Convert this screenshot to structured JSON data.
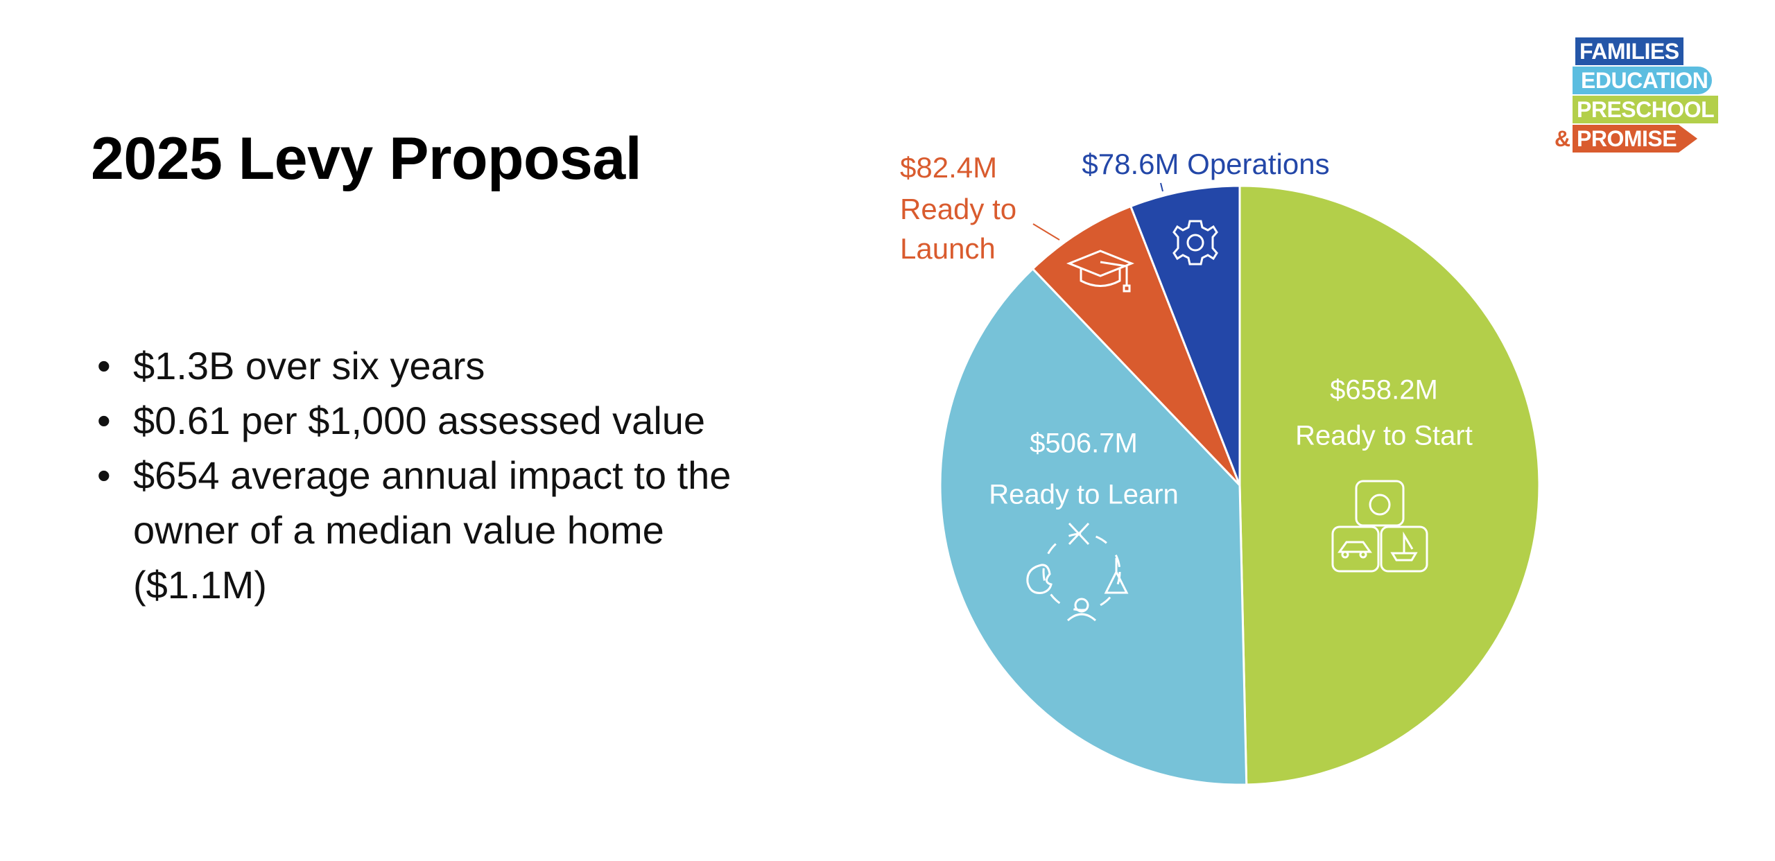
{
  "slide": {
    "title": "2025 Levy Proposal",
    "bullets": [
      "$1.3B over six years",
      "$0.61 per $1,000 assessed value",
      "$654 average annual impact to the owner of a median value home ($1.1M)"
    ]
  },
  "logo": {
    "lines": [
      "FAMILIES",
      "EDUCATION",
      "PRESCHOOL",
      "&",
      "PROMISE"
    ]
  },
  "chart_data": {
    "type": "pie",
    "start": "top, clockwise",
    "unit": "$M",
    "slices": [
      {
        "name": "Ready to Start",
        "value": 658.2,
        "label": "$658.2M",
        "color": "#b3cf4a",
        "icon": "toy-blocks-icon"
      },
      {
        "name": "Ready to Learn",
        "value": 506.7,
        "label": "$506.7M",
        "color": "#77c2d8",
        "icon": "learning-cycle-icon"
      },
      {
        "name": "Ready to Launch",
        "value": 82.4,
        "label": "$82.4M",
        "label_lines": [
          "$82.4M",
          "Ready to",
          "Launch"
        ],
        "color": "#d95b2e",
        "icon": "graduation-cap-icon"
      },
      {
        "name": "Operations",
        "value": 78.6,
        "label": "$78.6M Operations",
        "color": "#2347a8",
        "icon": "gear-icon"
      }
    ]
  }
}
